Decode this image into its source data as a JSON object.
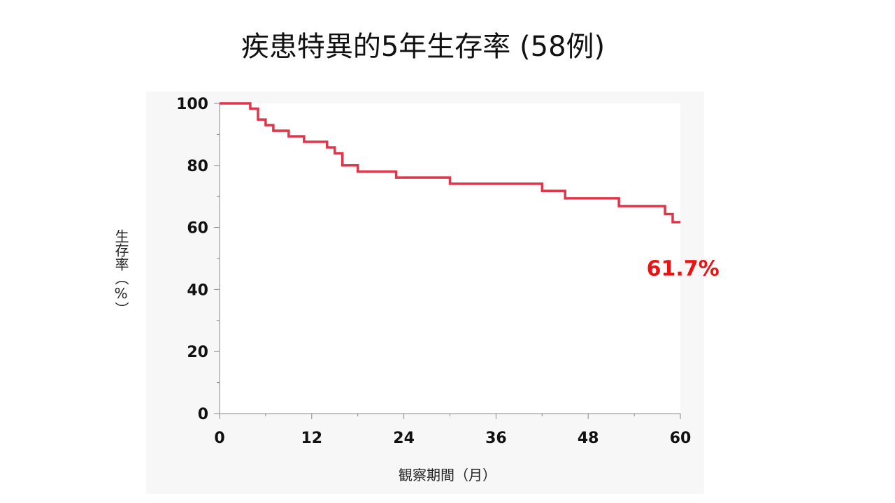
{
  "title": "疾患特異的5年生存率 (58例)",
  "chart_data": {
    "type": "line",
    "step": true,
    "xlabel": "観察期間（月）",
    "ylabel": "生存率（%）",
    "xlim": [
      0,
      60
    ],
    "ylim": [
      0,
      100
    ],
    "xticks": [
      0,
      12,
      24,
      36,
      48,
      60
    ],
    "yticks": [
      0,
      20,
      40,
      60,
      80,
      100
    ],
    "grid": false,
    "series": [
      {
        "color": "#e0364b",
        "points": [
          [
            0,
            100
          ],
          [
            4,
            98.3
          ],
          [
            5,
            94.8
          ],
          [
            6,
            93.0
          ],
          [
            7,
            91.2
          ],
          [
            9,
            89.4
          ],
          [
            11,
            87.6
          ],
          [
            14,
            85.8
          ],
          [
            15,
            83.9
          ],
          [
            16,
            80.0
          ],
          [
            18,
            78.0
          ],
          [
            23,
            76.1
          ],
          [
            30,
            74.1
          ],
          [
            42,
            71.8
          ],
          [
            45,
            69.4
          ],
          [
            52,
            66.9
          ],
          [
            58,
            64.3
          ],
          [
            59,
            61.7
          ],
          [
            60,
            61.7
          ]
        ]
      }
    ],
    "annotation": {
      "text": "61.7%",
      "x": 55.6,
      "y": 44.5,
      "color": "#ee1111"
    }
  }
}
